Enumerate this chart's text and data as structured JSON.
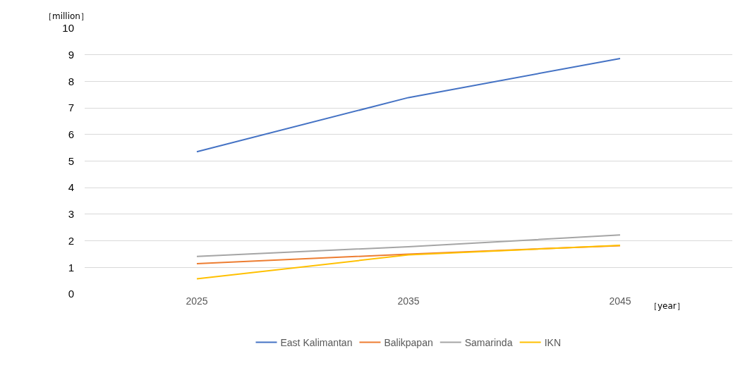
{
  "chart_data": {
    "type": "line",
    "xlabel": "［year］",
    "ylabel": "［million］",
    "categories": [
      "2025",
      "2035",
      "2045"
    ],
    "series": [
      {
        "name": "East Kalimantan",
        "color": "#4472c4",
        "values": [
          5.35,
          7.39,
          8.86
        ]
      },
      {
        "name": "Balikpapan",
        "color": "#ed7d31",
        "values": [
          1.14,
          1.5,
          1.82
        ]
      },
      {
        "name": "Samarinda",
        "color": "#a5a5a5",
        "values": [
          1.41,
          1.78,
          2.22
        ]
      },
      {
        "name": "IKN",
        "color": "#ffc000",
        "values": [
          0.57,
          1.47,
          1.83
        ]
      }
    ],
    "ylim": [
      0,
      10
    ],
    "yticks": [
      0,
      1,
      2,
      3,
      4,
      5,
      6,
      7,
      8,
      9,
      10
    ],
    "grid": "y",
    "legend": "bottom",
    "marker": "none",
    "line_style": "solid"
  }
}
